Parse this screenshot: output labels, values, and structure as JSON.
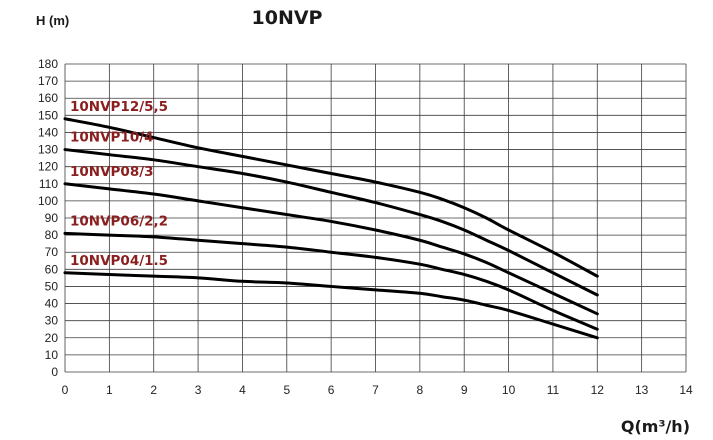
{
  "chart_data": {
    "type": "line",
    "title": "10NVP",
    "ylabel": "H (m)",
    "xlabel": "Q(m³/h)",
    "xlim": [
      0,
      14
    ],
    "ylim": [
      0,
      180
    ],
    "xticks": [
      0,
      1,
      2,
      3,
      4,
      5,
      6,
      7,
      8,
      9,
      10,
      11,
      12,
      13,
      14
    ],
    "yticks": [
      0,
      10,
      20,
      30,
      40,
      50,
      60,
      70,
      80,
      90,
      100,
      110,
      120,
      130,
      140,
      150,
      160,
      170,
      180
    ],
    "grid": true,
    "series": [
      {
        "name": "10NVP12/5,5",
        "x": [
          0,
          1,
          2,
          3,
          4,
          5,
          6,
          7,
          8,
          8.5,
          9,
          9.5,
          10,
          11,
          12
        ],
        "y": [
          148,
          143,
          137,
          131,
          126,
          121,
          116,
          111,
          105,
          101,
          96,
          90,
          83,
          70,
          56
        ]
      },
      {
        "name": "10NVP10/4",
        "x": [
          0,
          1,
          2,
          3,
          4,
          5,
          6,
          7,
          8,
          8.5,
          9,
          9.5,
          10,
          11,
          12
        ],
        "y": [
          130,
          127,
          124,
          120,
          116,
          111,
          105,
          99,
          92,
          88,
          83,
          77,
          71,
          58,
          45
        ]
      },
      {
        "name": "10NVP08/3",
        "x": [
          0,
          1,
          2,
          3,
          4,
          5,
          6,
          7,
          8,
          8.5,
          9,
          9.5,
          10,
          11,
          12
        ],
        "y": [
          110,
          107,
          104,
          100,
          96,
          92,
          88,
          83,
          77,
          73,
          69,
          64,
          58,
          46,
          34
        ]
      },
      {
        "name": "10NVP06/2,2",
        "x": [
          0,
          1,
          2,
          3,
          4,
          5,
          6,
          7,
          8,
          8.5,
          9,
          9.5,
          10,
          11,
          12
        ],
        "y": [
          81,
          80,
          79,
          77,
          75,
          73,
          70,
          67,
          63,
          60,
          57,
          53,
          48,
          36,
          25
        ]
      },
      {
        "name": "10NVP04/1.5",
        "x": [
          0,
          1,
          2,
          3,
          4,
          5,
          6,
          7,
          8,
          8.5,
          9,
          9.5,
          10,
          11,
          12
        ],
        "y": [
          58,
          57,
          56,
          55,
          53,
          52,
          50,
          48,
          46,
          44,
          42,
          39,
          36,
          28,
          20
        ]
      }
    ]
  }
}
